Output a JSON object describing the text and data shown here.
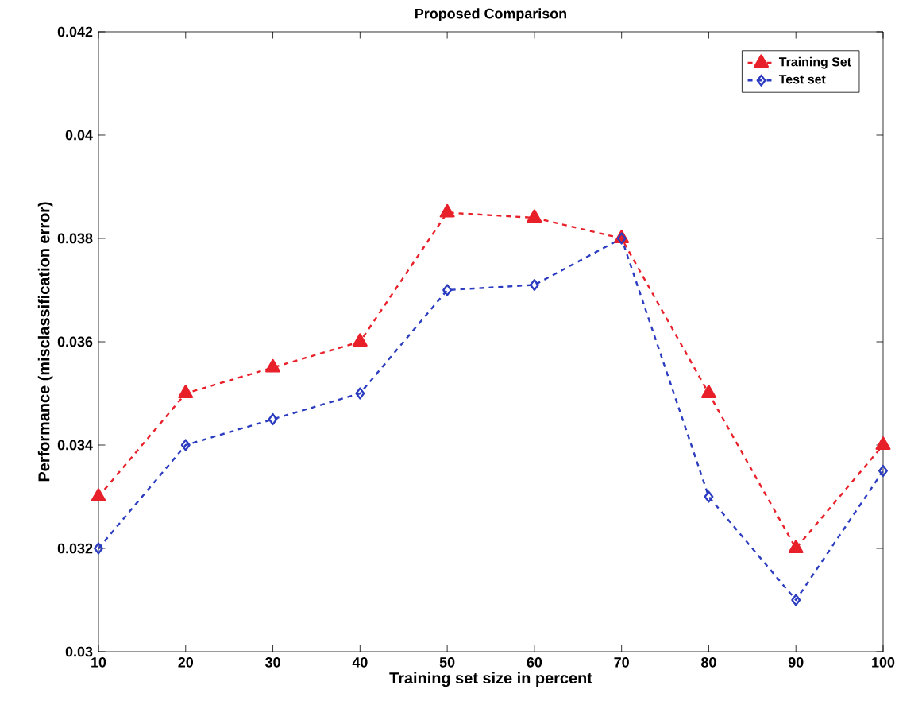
{
  "chart_data": {
    "type": "line",
    "title": "Proposed Comparison",
    "xlabel": "Training set size in percent",
    "ylabel": "Performance (misclassification error)",
    "x": [
      10,
      20,
      30,
      40,
      50,
      60,
      70,
      80,
      90,
      100
    ],
    "series": [
      {
        "name": "Training Set",
        "color": "#e8202a",
        "marker": "triangle",
        "line_style": "dashed",
        "values": [
          0.033,
          0.035,
          0.0355,
          0.036,
          0.0385,
          0.0384,
          0.038,
          0.035,
          0.032,
          0.034
        ]
      },
      {
        "name": "Test set",
        "color": "#2b3cc0",
        "marker": "diamond",
        "line_style": "dashed",
        "values": [
          0.032,
          0.034,
          0.0345,
          0.035,
          0.037,
          0.0371,
          0.038,
          0.033,
          0.031,
          0.0335
        ]
      }
    ],
    "xlim": [
      10,
      100
    ],
    "xticks": [
      10,
      20,
      30,
      40,
      50,
      60,
      70,
      80,
      90,
      100
    ],
    "ylim": [
      0.03,
      0.042
    ],
    "yticks": [
      0.03,
      0.032,
      0.034,
      0.036,
      0.038,
      0.04,
      0.042
    ],
    "grid": false,
    "legend": "top right"
  }
}
